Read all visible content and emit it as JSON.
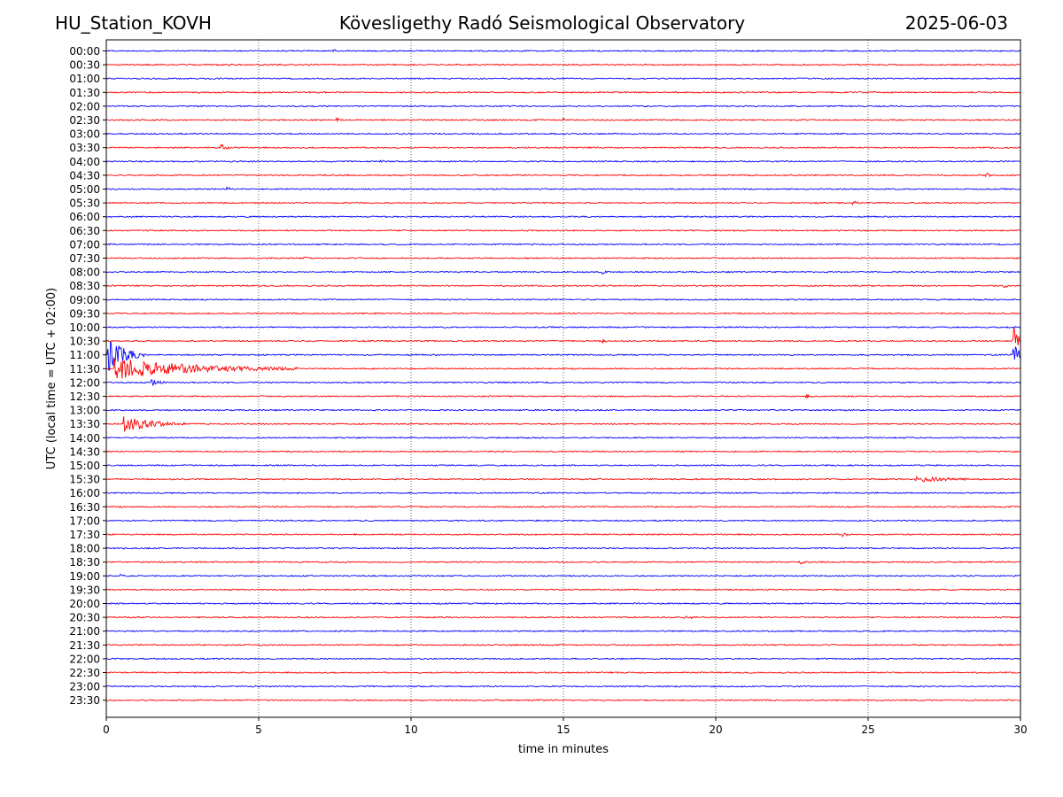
{
  "header": {
    "station": "HU_Station_KOVH",
    "observatory": "Kövesligethy Radó Seismological Observatory",
    "date": "2025-06-03"
  },
  "chart_data": {
    "type": "line",
    "title": "Kövesligethy Radó Seismological Observatory",
    "xlabel": "time in minutes",
    "ylabel": "UTC (local time = UTC + 02:00)",
    "xlim": [
      0,
      30
    ],
    "xticks": [
      "0",
      "5",
      "10",
      "15",
      "20",
      "25",
      "30"
    ],
    "grid": "vertical dotted at x ticks",
    "colors": {
      "even_rows": "#0000ff",
      "odd_rows": "#ff0000"
    },
    "row_labels": [
      "00:00",
      "00:30",
      "01:00",
      "01:30",
      "02:00",
      "02:30",
      "03:00",
      "03:30",
      "04:00",
      "04:30",
      "05:00",
      "05:30",
      "06:00",
      "06:30",
      "07:00",
      "07:30",
      "08:00",
      "08:30",
      "09:00",
      "09:30",
      "10:00",
      "10:30",
      "11:00",
      "11:30",
      "12:00",
      "12:30",
      "13:00",
      "13:30",
      "14:00",
      "14:30",
      "15:00",
      "15:30",
      "16:00",
      "16:30",
      "17:00",
      "17:30",
      "18:00",
      "18:30",
      "19:00",
      "19:30",
      "20:00",
      "20:30",
      "21:00",
      "21:30",
      "22:00",
      "22:30",
      "23:00",
      "23:30"
    ],
    "events": [
      {
        "row": "00:00",
        "t": 7.5,
        "amp": 0.35,
        "dur": 0.1
      },
      {
        "row": "02:30",
        "t": 7.6,
        "amp": 0.3,
        "dur": 0.2
      },
      {
        "row": "02:30",
        "t": 15.0,
        "amp": 0.3,
        "dur": 0.2
      },
      {
        "row": "03:30",
        "t": 3.8,
        "amp": 0.45,
        "dur": 0.5
      },
      {
        "row": "04:00",
        "t": 9.0,
        "amp": 0.3,
        "dur": 0.4
      },
      {
        "row": "04:30",
        "t": 28.9,
        "amp": 0.3,
        "dur": 0.4
      },
      {
        "row": "05:00",
        "t": 4.0,
        "amp": 0.3,
        "dur": 0.3
      },
      {
        "row": "05:30",
        "t": 24.5,
        "amp": 0.3,
        "dur": 0.6
      },
      {
        "row": "07:30",
        "t": 6.5,
        "amp": 0.35,
        "dur": 0.3
      },
      {
        "row": "08:00",
        "t": 16.3,
        "amp": 0.5,
        "dur": 0.3
      },
      {
        "row": "08:30",
        "t": 29.5,
        "amp": 0.3,
        "dur": 0.3
      },
      {
        "row": "10:30",
        "t": 16.3,
        "amp": 0.3,
        "dur": 0.3
      },
      {
        "row": "10:30",
        "t": 29.8,
        "amp": 2.2,
        "dur": 0.4
      },
      {
        "row": "11:00",
        "t": 0.1,
        "amp": 2.5,
        "dur": 1.2
      },
      {
        "row": "11:00",
        "t": 29.8,
        "amp": 2.0,
        "dur": 0.3
      },
      {
        "row": "11:30",
        "t": 0.3,
        "amp": 1.6,
        "dur": 6.0
      },
      {
        "row": "12:00",
        "t": 1.5,
        "amp": 0.45,
        "dur": 0.8
      },
      {
        "row": "12:30",
        "t": 23.0,
        "amp": 0.3,
        "dur": 0.3
      },
      {
        "row": "13:30",
        "t": 0.6,
        "amp": 1.3,
        "dur": 2.0
      },
      {
        "row": "15:30",
        "t": 26.6,
        "amp": 0.45,
        "dur": 3.2
      },
      {
        "row": "17:30",
        "t": 24.2,
        "amp": 0.45,
        "dur": 0.3
      },
      {
        "row": "18:30",
        "t": 22.8,
        "amp": 0.35,
        "dur": 0.3
      },
      {
        "row": "19:00",
        "t": 0.5,
        "amp": 0.3,
        "dur": 0.2
      },
      {
        "row": "20:30",
        "t": 19.0,
        "amp": 0.35,
        "dur": 0.8
      }
    ]
  }
}
